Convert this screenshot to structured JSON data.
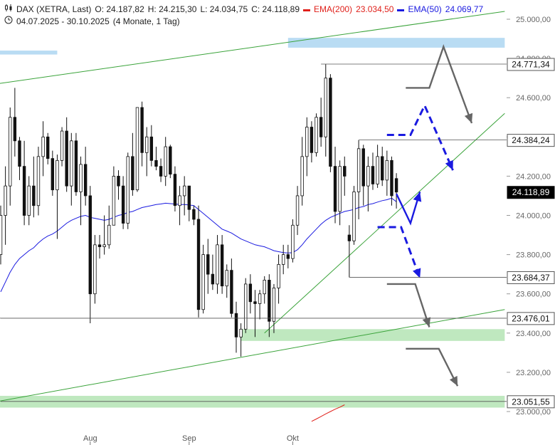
{
  "header": {
    "line1": {
      "instrument": "DAX (XETRA, Last)",
      "open": "O: 24.187,82",
      "high": "H: 24.215,30",
      "low": "L: 24.034,75",
      "close": "C: 24.118,89",
      "ema200_label": "EMA(200)",
      "ema200_value": "23.034,50",
      "ema50_label": "EMA(50)",
      "ema50_value": "24.069,77"
    },
    "line2": {
      "range": "04.07.2025 - 30.10.2025",
      "period": "(4 Monate, 1 Tag)"
    }
  },
  "colors": {
    "ema200": "#e0201a",
    "ema50": "#1a1ae0",
    "trend": "#3aa33a",
    "support_zone": "#bfe8bf",
    "resistance_zone": "#b9dcf3",
    "scenario_blue": "#1a1ae0",
    "scenario_gray": "#666666",
    "current_price_bg": "#000000"
  },
  "chart_data": {
    "type": "candlestick",
    "ylim": [
      22990,
      25050
    ],
    "y_ticks": [
      {
        "value": 25000,
        "label": "25.000,00"
      },
      {
        "value": 24800,
        "label": "24.800,00"
      },
      {
        "value": 24600,
        "label": "24.600,00"
      },
      {
        "value": 24400,
        "label": "24.400,00"
      },
      {
        "value": 24200,
        "label": "24.200,00"
      },
      {
        "value": 24000,
        "label": "24.000,00"
      },
      {
        "value": 23800,
        "label": "23.800,00"
      },
      {
        "value": 23600,
        "label": "23.600,00"
      },
      {
        "value": 23400,
        "label": "23.400,00"
      },
      {
        "value": 23200,
        "label": "23.200,00"
      },
      {
        "value": 23000,
        "label": "23.000,00"
      }
    ],
    "x_labels": [
      {
        "label": "Aug",
        "index": 19
      },
      {
        "label": "Sep",
        "index": 40
      },
      {
        "label": "Okt",
        "index": 62
      }
    ],
    "price_labels": [
      {
        "value": 24771.34,
        "label": "24.771,34",
        "from": 68
      },
      {
        "value": 24384.24,
        "label": "24.384,24",
        "from": 76
      },
      {
        "value": 24118.89,
        "label": "24.118,89",
        "current": true
      },
      {
        "value": 23684.37,
        "label": "23.684,37",
        "from": 74
      },
      {
        "value": 23476.01,
        "label": "23.476,01",
        "from": 0
      },
      {
        "value": 23051.55,
        "label": "23.051,55",
        "from": 0
      }
    ],
    "candles": [
      {
        "o": 23800,
        "h": 24050,
        "l": 23750,
        "c": 24000
      },
      {
        "o": 24000,
        "h": 24250,
        "l": 23850,
        "c": 24150
      },
      {
        "o": 24150,
        "h": 24550,
        "l": 24050,
        "c": 24500
      },
      {
        "o": 24500,
        "h": 24650,
        "l": 24300,
        "c": 24380
      },
      {
        "o": 24380,
        "h": 24400,
        "l": 24180,
        "c": 24250
      },
      {
        "o": 24250,
        "h": 24380,
        "l": 23950,
        "c": 24000
      },
      {
        "o": 24000,
        "h": 24200,
        "l": 23950,
        "c": 24150
      },
      {
        "o": 24150,
        "h": 24300,
        "l": 23990,
        "c": 24050
      },
      {
        "o": 24050,
        "h": 24350,
        "l": 24000,
        "c": 24300
      },
      {
        "o": 24300,
        "h": 24480,
        "l": 24200,
        "c": 24400
      },
      {
        "o": 24400,
        "h": 24420,
        "l": 24260,
        "c": 24290
      },
      {
        "o": 24290,
        "h": 24330,
        "l": 24100,
        "c": 24130
      },
      {
        "o": 24130,
        "h": 24310,
        "l": 23880,
        "c": 24280
      },
      {
        "o": 24280,
        "h": 24450,
        "l": 24250,
        "c": 24430
      },
      {
        "o": 24430,
        "h": 24500,
        "l": 24120,
        "c": 24150
      },
      {
        "o": 24150,
        "h": 24420,
        "l": 24050,
        "c": 24380
      },
      {
        "o": 24380,
        "h": 24420,
        "l": 24100,
        "c": 24120
      },
      {
        "o": 24120,
        "h": 24300,
        "l": 23950,
        "c": 24260
      },
      {
        "o": 24260,
        "h": 24350,
        "l": 24050,
        "c": 24100
      },
      {
        "o": 24100,
        "h": 24150,
        "l": 23450,
        "c": 23600
      },
      {
        "o": 23600,
        "h": 23900,
        "l": 23550,
        "c": 23850
      },
      {
        "o": 23850,
        "h": 23900,
        "l": 23780,
        "c": 23840
      },
      {
        "o": 23840,
        "h": 24000,
        "l": 23800,
        "c": 23850
      },
      {
        "o": 23850,
        "h": 24050,
        "l": 23830,
        "c": 23950
      },
      {
        "o": 23950,
        "h": 24250,
        "l": 23950,
        "c": 24200
      },
      {
        "o": 24200,
        "h": 24230,
        "l": 24080,
        "c": 24150
      },
      {
        "o": 24150,
        "h": 24200,
        "l": 23930,
        "c": 23960
      },
      {
        "o": 23960,
        "h": 24320,
        "l": 23930,
        "c": 24300
      },
      {
        "o": 24300,
        "h": 24420,
        "l": 24100,
        "c": 24130
      },
      {
        "o": 24130,
        "h": 24550,
        "l": 24120,
        "c": 24550
      },
      {
        "o": 24550,
        "h": 24580,
        "l": 24250,
        "c": 24320
      },
      {
        "o": 24320,
        "h": 24450,
        "l": 24200,
        "c": 24400
      },
      {
        "o": 24400,
        "h": 24460,
        "l": 24250,
        "c": 24280
      },
      {
        "o": 24280,
        "h": 24350,
        "l": 24230,
        "c": 24250
      },
      {
        "o": 24250,
        "h": 24290,
        "l": 24170,
        "c": 24200
      },
      {
        "o": 24200,
        "h": 24400,
        "l": 24150,
        "c": 24350
      },
      {
        "o": 24350,
        "h": 24360,
        "l": 24190,
        "c": 24210
      },
      {
        "o": 24210,
        "h": 24250,
        "l": 24020,
        "c": 24050
      },
      {
        "o": 24050,
        "h": 24150,
        "l": 23950,
        "c": 24100
      },
      {
        "o": 24100,
        "h": 24200,
        "l": 24000,
        "c": 24150
      },
      {
        "o": 24150,
        "h": 24150,
        "l": 23970,
        "c": 24030
      },
      {
        "o": 24030,
        "h": 24050,
        "l": 23950,
        "c": 23980
      },
      {
        "o": 23980,
        "h": 24050,
        "l": 23480,
        "c": 23520
      },
      {
        "o": 23520,
        "h": 23850,
        "l": 23500,
        "c": 23800
      },
      {
        "o": 23800,
        "h": 23880,
        "l": 23600,
        "c": 23700
      },
      {
        "o": 23700,
        "h": 23800,
        "l": 23620,
        "c": 23650
      },
      {
        "o": 23650,
        "h": 23900,
        "l": 23600,
        "c": 23850
      },
      {
        "o": 23850,
        "h": 23900,
        "l": 23600,
        "c": 23640
      },
      {
        "o": 23640,
        "h": 23750,
        "l": 23580,
        "c": 23720
      },
      {
        "o": 23720,
        "h": 23780,
        "l": 23480,
        "c": 23500
      },
      {
        "o": 23500,
        "h": 23560,
        "l": 23300,
        "c": 23380
      },
      {
        "o": 23380,
        "h": 23450,
        "l": 23280,
        "c": 23420
      },
      {
        "o": 23420,
        "h": 23680,
        "l": 23400,
        "c": 23650
      },
      {
        "o": 23650,
        "h": 23700,
        "l": 23500,
        "c": 23560
      },
      {
        "o": 23560,
        "h": 23620,
        "l": 23380,
        "c": 23550
      },
      {
        "o": 23550,
        "h": 23620,
        "l": 23470,
        "c": 23600
      },
      {
        "o": 23600,
        "h": 23690,
        "l": 23550,
        "c": 23670
      },
      {
        "o": 23670,
        "h": 23700,
        "l": 23380,
        "c": 23460
      },
      {
        "o": 23460,
        "h": 23650,
        "l": 23400,
        "c": 23630
      },
      {
        "o": 23630,
        "h": 23800,
        "l": 23550,
        "c": 23750
      },
      {
        "o": 23750,
        "h": 23850,
        "l": 23700,
        "c": 23800
      },
      {
        "o": 23800,
        "h": 23850,
        "l": 23730,
        "c": 23780
      },
      {
        "o": 23780,
        "h": 23980,
        "l": 23760,
        "c": 23950
      },
      {
        "o": 23950,
        "h": 24150,
        "l": 23900,
        "c": 24100
      },
      {
        "o": 24100,
        "h": 24400,
        "l": 24050,
        "c": 24300
      },
      {
        "o": 24300,
        "h": 24500,
        "l": 24200,
        "c": 24450
      },
      {
        "o": 24450,
        "h": 24480,
        "l": 24270,
        "c": 24320
      },
      {
        "o": 24320,
        "h": 24520,
        "l": 24300,
        "c": 24500
      },
      {
        "o": 24500,
        "h": 24600,
        "l": 24350,
        "c": 24400
      },
      {
        "o": 24400,
        "h": 24771,
        "l": 24300,
        "c": 24700
      },
      {
        "o": 24700,
        "h": 24720,
        "l": 24220,
        "c": 24250
      },
      {
        "o": 24250,
        "h": 24350,
        "l": 23960,
        "c": 24020
      },
      {
        "o": 24020,
        "h": 24280,
        "l": 23950,
        "c": 24250
      },
      {
        "o": 24250,
        "h": 24300,
        "l": 24100,
        "c": 24200
      },
      {
        "o": 23900,
        "h": 23950,
        "l": 23684,
        "c": 23870
      },
      {
        "o": 23870,
        "h": 24150,
        "l": 23850,
        "c": 24120
      },
      {
        "o": 24120,
        "h": 24384,
        "l": 23980,
        "c": 24340
      },
      {
        "o": 24340,
        "h": 24360,
        "l": 24050,
        "c": 24150
      },
      {
        "o": 24150,
        "h": 24300,
        "l": 24020,
        "c": 24250
      },
      {
        "o": 24250,
        "h": 24320,
        "l": 24130,
        "c": 24160
      },
      {
        "o": 24160,
        "h": 24360,
        "l": 24140,
        "c": 24300
      },
      {
        "o": 24300,
        "h": 24350,
        "l": 24150,
        "c": 24180
      },
      {
        "o": 24180,
        "h": 24330,
        "l": 24100,
        "c": 24280
      },
      {
        "o": 24280,
        "h": 24300,
        "l": 24050,
        "c": 24100
      },
      {
        "o": 24187.82,
        "h": 24215.3,
        "l": 24034.75,
        "c": 24118.89
      }
    ],
    "ema50": [
      23610,
      23660,
      23710,
      23750,
      23780,
      23800,
      23820,
      23835,
      23860,
      23880,
      23895,
      23905,
      23920,
      23940,
      23960,
      23975,
      23985,
      23995,
      24000,
      23990,
      23985,
      23980,
      23975,
      23980,
      23990,
      24000,
      24005,
      24015,
      24020,
      24030,
      24040,
      24045,
      24050,
      24055,
      24058,
      24062,
      24060,
      24058,
      24055,
      24055,
      24053,
      24050,
      24030,
      24010,
      23990,
      23970,
      23950,
      23930,
      23920,
      23910,
      23895,
      23880,
      23870,
      23860,
      23850,
      23845,
      23840,
      23830,
      23820,
      23815,
      23810,
      23808,
      23810,
      23825,
      23850,
      23880,
      23905,
      23930,
      23955,
      23975,
      23990,
      24000,
      24010,
      24020,
      24025,
      24030,
      24040,
      24045,
      24055,
      24060,
      24068,
      24075,
      24080,
      24088,
      24069.77
    ],
    "ema200": {
      "from": 66,
      "values": [
        22950,
        22962,
        22975,
        22988,
        23000,
        23012,
        23022,
        23034.5
      ]
    },
    "trendlines": [
      {
        "name": "upper-channel",
        "from": {
          "i": -1,
          "v": 24670
        },
        "to": {
          "i": 107,
          "v": 25040
        }
      },
      {
        "name": "lower-channel",
        "from": {
          "i": -1,
          "v": 23050
        },
        "to": {
          "i": 107,
          "v": 23520
        }
      },
      {
        "name": "rising-support",
        "from": {
          "i": 56,
          "v": 23400
        },
        "to": {
          "i": 107,
          "v": 24520
        }
      }
    ],
    "zones": [
      {
        "name": "resistance-zone-right",
        "from": 61,
        "to": 107,
        "v_low": 24855,
        "v_high": 24905,
        "color": "#b9dcf3"
      },
      {
        "name": "resistance-zone-left",
        "from": -1,
        "to": 12,
        "v_low": 24820,
        "v_high": 24840,
        "color": "#b9dcf3"
      },
      {
        "name": "support-zone-mid",
        "from": 51,
        "to": 107,
        "v_low": 23360,
        "v_high": 23420,
        "color": "#bfe8bf"
      },
      {
        "name": "support-zone-low",
        "from": -1,
        "to": 107,
        "v_low": 23020,
        "v_high": 23080,
        "color": "#bfe8bf"
      }
    ],
    "hlines": [
      {
        "name": "line-23476",
        "v": 23476.01,
        "from": -1
      }
    ],
    "scenarios": [
      {
        "name": "gray-top",
        "color": "#666666",
        "dashed": false,
        "points": [
          [
            86,
            24650
          ],
          [
            91,
            24650
          ],
          [
            94,
            24860
          ],
          [
            100,
            24470
          ]
        ]
      },
      {
        "name": "blue-upper",
        "color": "#1a1ae0",
        "dashed": true,
        "points": [
          [
            82,
            24410
          ],
          [
            87,
            24410
          ],
          [
            90,
            24560
          ],
          [
            96,
            24230
          ]
        ]
      },
      {
        "name": "blue-up",
        "color": "#1a1ae0",
        "dashed": false,
        "points": [
          [
            84,
            24110
          ],
          [
            87,
            23960
          ],
          [
            89,
            24120
          ]
        ]
      },
      {
        "name": "blue-lower",
        "color": "#1a1ae0",
        "dashed": true,
        "points": [
          [
            80,
            23940
          ],
          [
            85,
            23940
          ],
          [
            89,
            23680
          ]
        ]
      },
      {
        "name": "gray-mid",
        "color": "#666666",
        "dashed": false,
        "points": [
          [
            82,
            23650
          ],
          [
            88,
            23650
          ],
          [
            91,
            23430
          ]
        ]
      },
      {
        "name": "gray-low",
        "color": "#666666",
        "dashed": false,
        "points": [
          [
            86,
            23320
          ],
          [
            93,
            23320
          ],
          [
            97,
            23130
          ]
        ]
      }
    ]
  }
}
